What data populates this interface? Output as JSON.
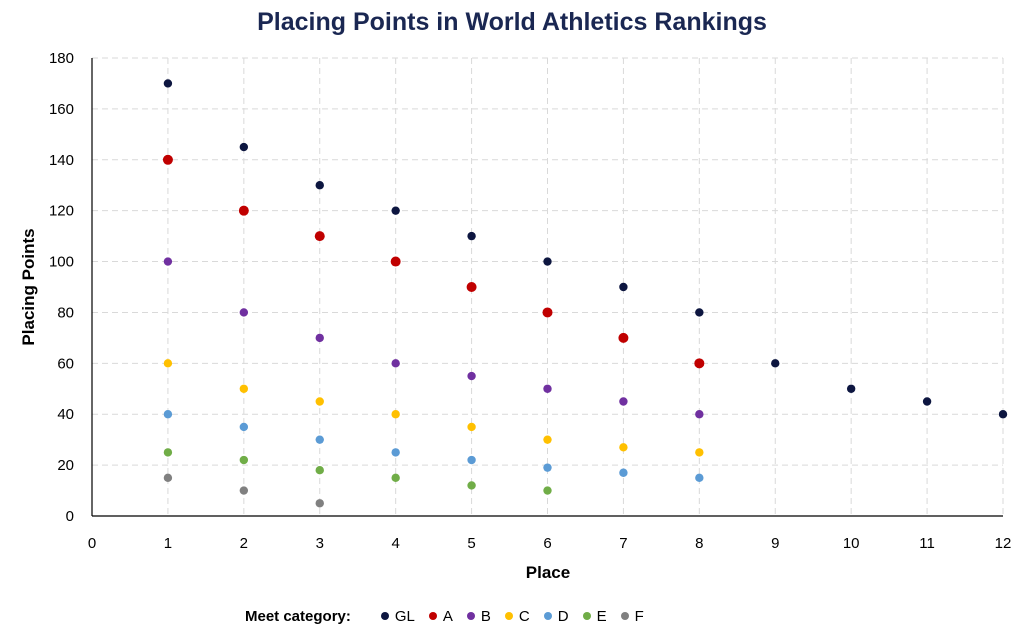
{
  "chart_data": {
    "type": "scatter",
    "title": "Placing Points in World Athletics Rankings",
    "xlabel": "Place",
    "ylabel": "Placing Points",
    "xlim": [
      0,
      12
    ],
    "ylim": [
      0,
      180
    ],
    "xticks": [
      0,
      1,
      2,
      3,
      4,
      5,
      6,
      7,
      8,
      9,
      10,
      11,
      12
    ],
    "yticks": [
      0,
      20,
      40,
      60,
      80,
      100,
      120,
      140,
      160,
      180
    ],
    "grid": true,
    "legend_position": "bottom",
    "legend_title": "Meet category:",
    "series": [
      {
        "name": "GL",
        "color": "#0d1640",
        "x": [
          1,
          2,
          3,
          4,
          5,
          6,
          7,
          8,
          9,
          10,
          11,
          12
        ],
        "y": [
          170,
          145,
          130,
          120,
          110,
          100,
          90,
          80,
          60,
          50,
          45,
          40
        ]
      },
      {
        "name": "A",
        "color": "#c00000",
        "x": [
          1,
          2,
          3,
          4,
          5,
          6,
          7,
          8
        ],
        "y": [
          140,
          120,
          110,
          100,
          90,
          80,
          70,
          60
        ]
      },
      {
        "name": "B",
        "color": "#7030a0",
        "x": [
          1,
          2,
          3,
          4,
          5,
          6,
          7,
          8
        ],
        "y": [
          100,
          80,
          70,
          60,
          55,
          50,
          45,
          40
        ]
      },
      {
        "name": "C",
        "color": "#ffc000",
        "x": [
          1,
          2,
          3,
          4,
          5,
          6,
          7,
          8
        ],
        "y": [
          60,
          50,
          45,
          40,
          35,
          30,
          27,
          25
        ]
      },
      {
        "name": "D",
        "color": "#5b9bd5",
        "x": [
          1,
          2,
          3,
          4,
          5,
          6,
          7,
          8
        ],
        "y": [
          40,
          35,
          30,
          25,
          22,
          19,
          17,
          15
        ]
      },
      {
        "name": "E",
        "color": "#70ad47",
        "x": [
          1,
          2,
          3,
          4,
          5,
          6
        ],
        "y": [
          25,
          22,
          18,
          15,
          12,
          10
        ]
      },
      {
        "name": "F",
        "color": "#808080",
        "x": [
          1,
          2,
          3
        ],
        "y": [
          15,
          10,
          5
        ]
      }
    ]
  }
}
